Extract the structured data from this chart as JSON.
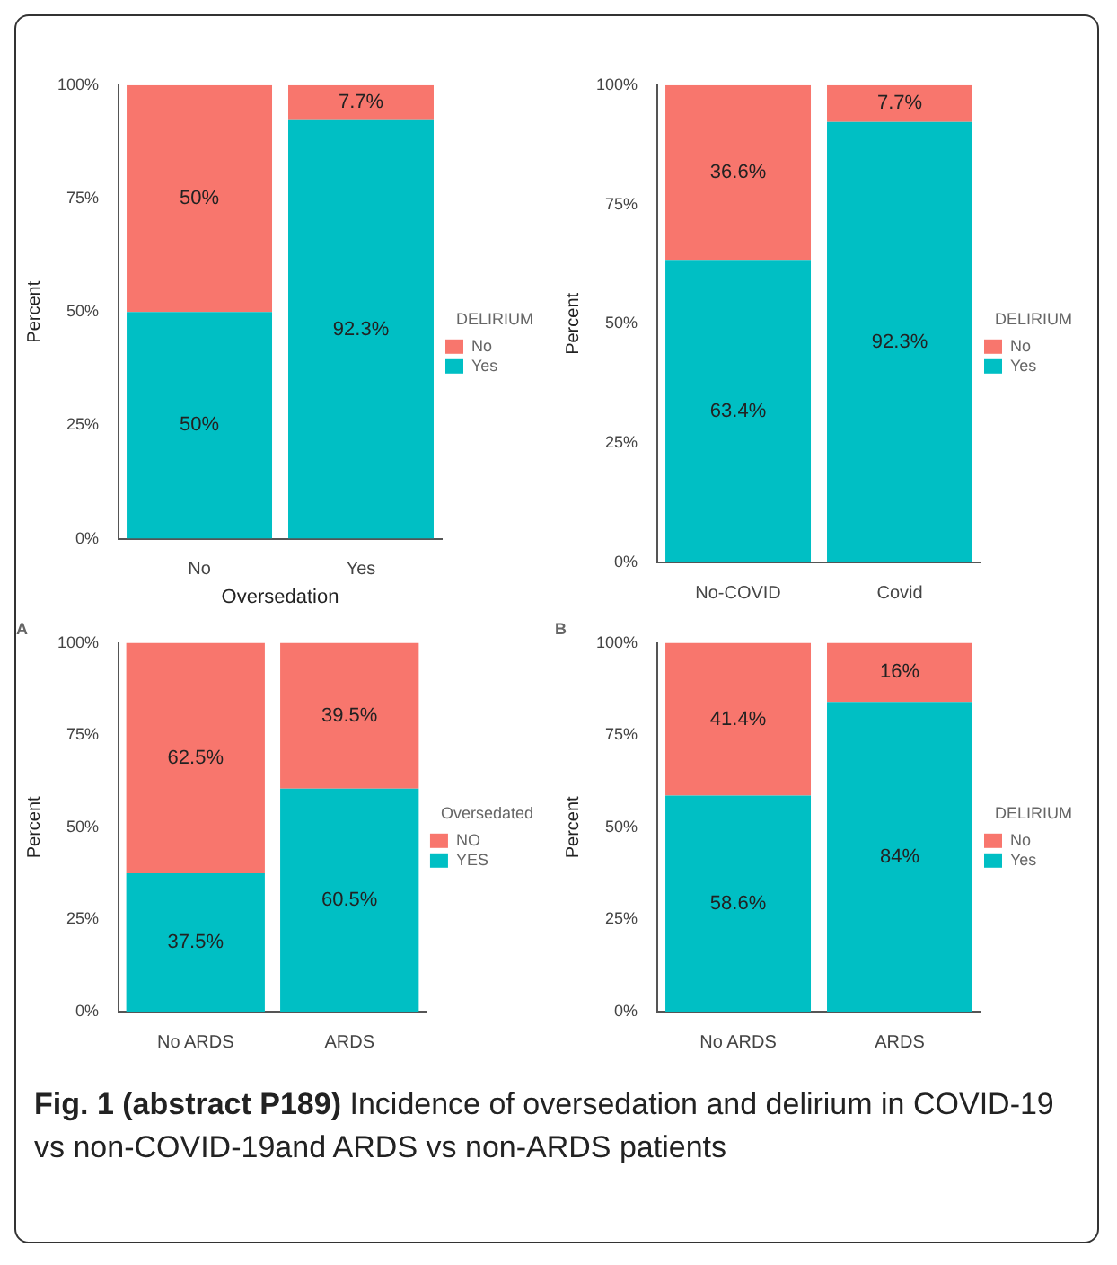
{
  "chart_data": [
    {
      "type": "bar",
      "stacked": true,
      "xlabel": "Oversedation",
      "ylabel": "Percent",
      "legend_title": "DELIRIUM",
      "legend": "right",
      "categories": [
        "No",
        "Yes"
      ],
      "ylim": [
        0,
        100
      ],
      "yticks": [
        {
          "value": 0,
          "label": "0%"
        },
        {
          "value": 25,
          "label": "25%"
        },
        {
          "value": 50,
          "label": "50%"
        },
        {
          "value": 75,
          "label": "75%"
        },
        {
          "value": 100,
          "label": "100%"
        }
      ],
      "series": [
        {
          "name": "Yes",
          "color": "#00bfc4",
          "values": [
            50,
            92.3
          ],
          "value_labels": [
            "50%",
            "92.3%"
          ]
        },
        {
          "name": "No",
          "color": "#f8766d",
          "values": [
            50,
            7.7
          ],
          "value_labels": [
            "50%",
            "7.7%"
          ]
        }
      ]
    },
    {
      "type": "bar",
      "stacked": true,
      "ylabel": "Percent",
      "legend_title": "DELIRIUM",
      "legend": "right",
      "categories": [
        "No-COVID",
        "Covid"
      ],
      "ylim": [
        0,
        100
      ],
      "yticks": [
        {
          "value": 0,
          "label": "0%"
        },
        {
          "value": 25,
          "label": "25%"
        },
        {
          "value": 50,
          "label": "50%"
        },
        {
          "value": 75,
          "label": "75%"
        },
        {
          "value": 100,
          "label": "100%"
        }
      ],
      "series": [
        {
          "name": "Yes",
          "color": "#00bfc4",
          "values": [
            63.4,
            92.3
          ],
          "value_labels": [
            "63.4%",
            "92.3%"
          ]
        },
        {
          "name": "No",
          "color": "#f8766d",
          "values": [
            36.6,
            7.7
          ],
          "value_labels": [
            "36.6%",
            "7.7%"
          ]
        }
      ]
    },
    {
      "type": "bar",
      "stacked": true,
      "title": "A",
      "ylabel": "Percent",
      "legend_title": "Oversedated",
      "legend": "right",
      "categories": [
        "No ARDS",
        "ARDS"
      ],
      "ylim": [
        0,
        100
      ],
      "yticks": [
        {
          "value": 0,
          "label": "0%"
        },
        {
          "value": 25,
          "label": "25%"
        },
        {
          "value": 50,
          "label": "50%"
        },
        {
          "value": 75,
          "label": "75%"
        },
        {
          "value": 100,
          "label": "100%"
        }
      ],
      "series": [
        {
          "name": "YES",
          "color": "#00bfc4",
          "values": [
            37.5,
            60.5
          ],
          "value_labels": [
            "37.5%",
            "60.5%"
          ]
        },
        {
          "name": "NO",
          "color": "#f8766d",
          "values": [
            62.5,
            39.5
          ],
          "value_labels": [
            "62.5%",
            "39.5%"
          ]
        }
      ]
    },
    {
      "type": "bar",
      "stacked": true,
      "title": "B",
      "ylabel": "Percent",
      "legend_title": "DELIRIUM",
      "legend": "right",
      "categories": [
        "No ARDS",
        "ARDS"
      ],
      "ylim": [
        0,
        100
      ],
      "yticks": [
        {
          "value": 0,
          "label": "0%"
        },
        {
          "value": 25,
          "label": "25%"
        },
        {
          "value": 50,
          "label": "50%"
        },
        {
          "value": 75,
          "label": "75%"
        },
        {
          "value": 100,
          "label": "100%"
        }
      ],
      "series": [
        {
          "name": "Yes",
          "color": "#00bfc4",
          "values": [
            58.6,
            84
          ],
          "value_labels": [
            "58.6%",
            "84%"
          ]
        },
        {
          "name": "No",
          "color": "#f8766d",
          "values": [
            41.4,
            16
          ],
          "value_labels": [
            "41.4%",
            "16%"
          ]
        }
      ],
      "annotations": [
        "Fig. 1 (abstract P189)",
        "Incidence of oversedation and delirium in COVID-19 vs non-COVID-19and ARDS vs non-ARDS patients"
      ]
    }
  ]
}
